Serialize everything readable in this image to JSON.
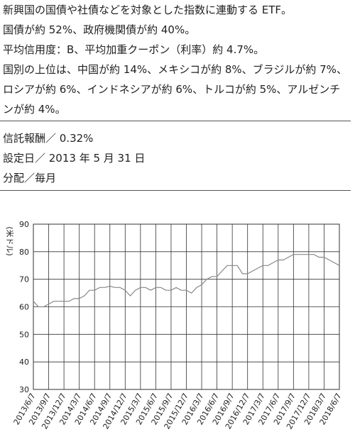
{
  "description": [
    "新興国の国債や社債などを対象とした指数に連動する ETF。",
    "国債が約 52%、政府機関債が約 40%。",
    "平均信用度：B、平均加重クーポン（利率）約 4.7%。",
    "国別の上位は、中国が約 14%、メキシコが約 8%、ブラジルが約 7%、ロシアが約 6%、インドネシアが約 6%、トルコが約 5%、アルゼンチンが約 4%。"
  ],
  "info": [
    "信託報酬／ 0.32%",
    "設定日／ 2013 年 5 月 31 日",
    "分配／毎月"
  ],
  "chart_data": {
    "type": "line",
    "y_label": "(米ドル)",
    "color": "#888888",
    "grid": true,
    "categories": [
      "2013/6/7",
      null,
      null,
      "2013/9/7",
      null,
      null,
      "2013/12/7",
      null,
      null,
      "2014/3/7",
      null,
      null,
      "2014/6/7",
      null,
      null,
      "2014/9/7",
      null,
      null,
      "2014/12/7",
      null,
      null,
      "2015/3/7",
      null,
      null,
      "2015/6/7",
      null,
      null,
      "2015/9/7",
      null,
      null,
      "2015/12/7",
      null,
      null,
      "2016/3/7",
      null,
      null,
      "2016/6/7",
      null,
      null,
      "2016/9/7",
      null,
      null,
      "2016/12/7",
      null,
      null,
      "2017/3/7",
      null,
      null,
      "2017/6/7",
      null,
      null,
      "2017/9/7",
      null,
      null,
      "2017/12/7",
      null,
      null,
      "2018/3/7",
      null,
      null,
      "2018/6/7"
    ],
    "values": [
      62,
      60,
      60,
      61,
      62,
      62,
      62,
      62,
      63,
      63,
      64,
      66,
      66,
      67,
      67,
      67.5,
      67,
      67,
      66,
      64,
      66,
      67,
      67,
      66,
      67,
      67,
      66,
      66,
      67,
      66,
      66,
      65,
      67,
      68,
      70,
      71,
      71,
      73,
      75,
      75,
      75,
      72,
      72,
      73,
      74,
      75,
      75,
      76,
      77,
      77,
      78,
      79,
      79,
      79,
      79,
      79,
      78,
      78,
      77,
      76,
      75
    ],
    "ylim": [
      30,
      90
    ],
    "yticks": [
      30,
      40,
      50,
      60,
      70,
      80,
      90
    ]
  }
}
